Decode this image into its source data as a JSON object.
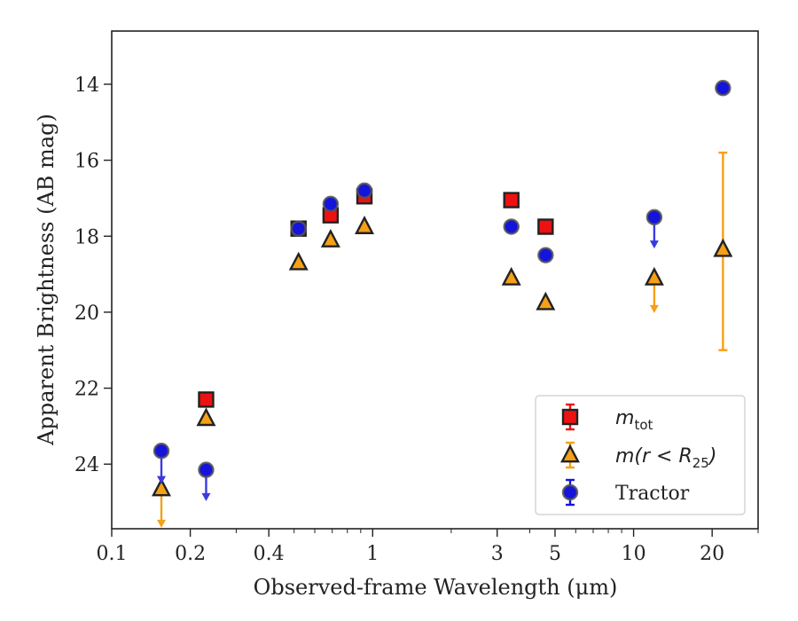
{
  "chart_data": {
    "type": "scatter",
    "title": "",
    "xlabel": "Observed-frame Wavelength (μm)",
    "ylabel": "Apparent Brightness (AB mag)",
    "x_scale": "log",
    "xlim": [
      0.1,
      30
    ],
    "ylim": [
      25.7,
      12.6
    ],
    "y_inverted": true,
    "x_ticks": [
      {
        "value": 0.1,
        "label": "0.1"
      },
      {
        "value": 0.2,
        "label": "0.2"
      },
      {
        "value": 0.4,
        "label": "0.4"
      },
      {
        "value": 1,
        "label": "1"
      },
      {
        "value": 3,
        "label": "3"
      },
      {
        "value": 5,
        "label": "5"
      },
      {
        "value": 10,
        "label": "10"
      },
      {
        "value": 20,
        "label": "20"
      }
    ],
    "y_ticks": [
      {
        "value": 14,
        "label": "14"
      },
      {
        "value": 16,
        "label": "16"
      },
      {
        "value": 18,
        "label": "18"
      },
      {
        "value": 20,
        "label": "20"
      },
      {
        "value": 22,
        "label": "22"
      },
      {
        "value": 24,
        "label": "24"
      }
    ],
    "grid": false,
    "legend_position": "lower-right",
    "series": [
      {
        "name": "m_tot",
        "marker": "square",
        "color": "#ee1111",
        "edge": "#222222",
        "points": [
          {
            "x": 0.23,
            "y": 22.3
          },
          {
            "x": 0.52,
            "y": 17.8
          },
          {
            "x": 0.69,
            "y": 17.45
          },
          {
            "x": 0.93,
            "y": 16.95
          },
          {
            "x": 3.4,
            "y": 17.05
          },
          {
            "x": 4.6,
            "y": 17.75
          }
        ]
      },
      {
        "name": "m(r<R25)",
        "marker": "triangle",
        "color": "#f5a017",
        "edge": "#222222",
        "points": [
          {
            "x": 0.155,
            "y": 24.65,
            "upper_limit": true,
            "arrow_to": 25.65
          },
          {
            "x": 0.23,
            "y": 22.8
          },
          {
            "x": 0.52,
            "y": 18.7
          },
          {
            "x": 0.69,
            "y": 18.1
          },
          {
            "x": 0.93,
            "y": 17.75
          },
          {
            "x": 3.4,
            "y": 19.1
          },
          {
            "x": 4.6,
            "y": 19.75
          },
          {
            "x": 12.0,
            "y": 19.1,
            "upper_limit": true,
            "arrow_to": 20.0
          },
          {
            "x": 22.0,
            "y": 18.35,
            "yerr": [
              15.8,
              21.0
            ]
          }
        ]
      },
      {
        "name": "Tractor",
        "marker": "circle",
        "color": "#1414dc",
        "edge": "#555555",
        "points": [
          {
            "x": 0.155,
            "y": 23.65,
            "upper_limit": true,
            "arrow_to": 24.5
          },
          {
            "x": 0.23,
            "y": 24.15,
            "upper_limit": true,
            "arrow_to": 24.95
          },
          {
            "x": 0.52,
            "y": 17.8
          },
          {
            "x": 0.69,
            "y": 17.15
          },
          {
            "x": 0.93,
            "y": 16.8
          },
          {
            "x": 3.4,
            "y": 17.75
          },
          {
            "x": 4.6,
            "y": 18.5
          },
          {
            "x": 12.0,
            "y": 17.5,
            "upper_limit": true,
            "arrow_to": 18.3
          },
          {
            "x": 22.0,
            "y": 14.1
          }
        ]
      }
    ]
  }
}
